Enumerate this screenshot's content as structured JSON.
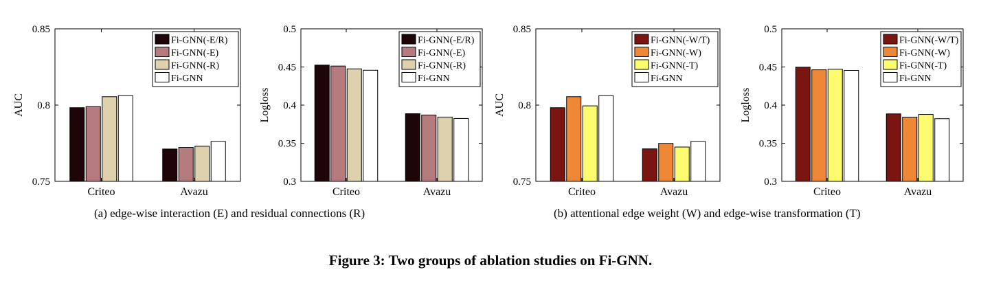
{
  "figure_title": "Figure 3: Two groups of ablation studies on Fi-GNN.",
  "captions": {
    "a": "(a)  edge-wise interaction (E) and residual connections (R)",
    "b": "(b)  attentional edge weight (W) and edge-wise transformation (T)"
  },
  "chart_data": [
    {
      "type": "bar",
      "categories": [
        "Criteo",
        "Avazu"
      ],
      "ylabel": "AUC",
      "ylim": [
        0.75,
        0.85
      ],
      "yticks": [
        "0.75",
        "0.8",
        "0.85"
      ],
      "legend_placement": "top-right",
      "series": [
        {
          "name": "Fi-GNN(-E/R)",
          "color": "#1e0507",
          "values": [
            0.7983,
            0.7712
          ]
        },
        {
          "name": "Fi-GNN(-E)",
          "color": "#b57b7e",
          "values": [
            0.799,
            0.7723
          ]
        },
        {
          "name": "Fi-GNN(-R)",
          "color": "#ddd2ad",
          "values": [
            0.8055,
            0.773
          ]
        },
        {
          "name": "Fi-GNN",
          "color": "#ffffff",
          "values": [
            0.8062,
            0.7762
          ]
        }
      ]
    },
    {
      "type": "bar",
      "categories": [
        "Criteo",
        "Avazu"
      ],
      "ylabel": "Logloss",
      "ylim": [
        0.3,
        0.5
      ],
      "yticks": [
        "0.3",
        "0.35",
        "0.4",
        "0.45",
        "0.5"
      ],
      "legend_placement": "top-right",
      "series": [
        {
          "name": "Fi-GNN(-E/R)",
          "color": "#1e0507",
          "values": [
            0.4525,
            0.3887
          ]
        },
        {
          "name": "Fi-GNN(-E)",
          "color": "#b57b7e",
          "values": [
            0.4512,
            0.387
          ]
        },
        {
          "name": "Fi-GNN(-R)",
          "color": "#ddd2ad",
          "values": [
            0.4475,
            0.3843
          ]
        },
        {
          "name": "Fi-GNN",
          "color": "#ffffff",
          "values": [
            0.4457,
            0.3825
          ]
        }
      ]
    },
    {
      "type": "bar",
      "categories": [
        "Criteo",
        "Avazu"
      ],
      "ylabel": "AUC",
      "ylim": [
        0.75,
        0.85
      ],
      "yticks": [
        "0.75",
        "0.8",
        "0.85"
      ],
      "legend_placement": "top-right",
      "series": [
        {
          "name": "Fi-GNN(-W/T)",
          "color": "#7a1612",
          "values": [
            0.7983,
            0.7713
          ]
        },
        {
          "name": "Fi-GNN(-W)",
          "color": "#ef8836",
          "values": [
            0.8055,
            0.7749
          ]
        },
        {
          "name": "Fi-GNN(-T)",
          "color": "#fdfb6e",
          "values": [
            0.7995,
            0.7725
          ]
        },
        {
          "name": "Fi-GNN",
          "color": "#ffffff",
          "values": [
            0.8062,
            0.7762
          ]
        }
      ]
    },
    {
      "type": "bar",
      "categories": [
        "Criteo",
        "Avazu"
      ],
      "ylabel": "Logloss",
      "ylim": [
        0.3,
        0.5
      ],
      "yticks": [
        "0.3",
        "0.35",
        "0.4",
        "0.45",
        "0.5"
      ],
      "legend_placement": "top-right",
      "series": [
        {
          "name": "Fi-GNN(-W/T)",
          "color": "#7a1612",
          "values": [
            0.4497,
            0.3885
          ]
        },
        {
          "name": "Fi-GNN(-W)",
          "color": "#ef8836",
          "values": [
            0.4463,
            0.3842
          ]
        },
        {
          "name": "Fi-GNN(-T)",
          "color": "#fdfb6e",
          "values": [
            0.447,
            0.3878
          ]
        },
        {
          "name": "Fi-GNN",
          "color": "#ffffff",
          "values": [
            0.4455,
            0.3822
          ]
        }
      ]
    }
  ]
}
